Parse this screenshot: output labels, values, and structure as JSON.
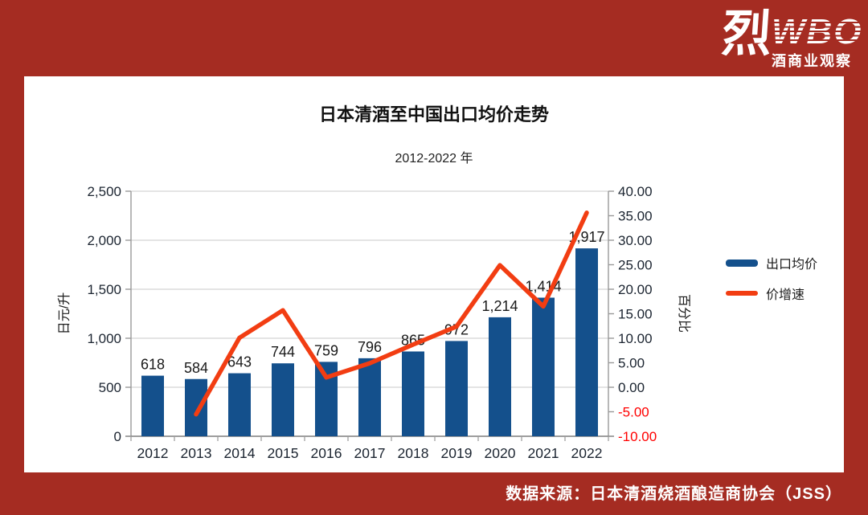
{
  "page": {
    "background_color": "#A52C22"
  },
  "logo": {
    "char": "烈",
    "brand": "WBO",
    "tagline": "酒商业观察"
  },
  "source_note": "数据来源：日本清酒烧酒酿造商协会（JSS）",
  "chart_data": {
    "type": "combo-bar-line",
    "title": "日本清酒至中国出口均价走势",
    "subtitle": "2012-2022 年",
    "categories": [
      "2012",
      "2013",
      "2014",
      "2015",
      "2016",
      "2017",
      "2018",
      "2019",
      "2020",
      "2021",
      "2022"
    ],
    "series": [
      {
        "name": "出口均价",
        "type": "bar",
        "axis": "left",
        "color": "#14508C",
        "values": [
          618,
          584,
          643,
          744,
          759,
          796,
          865,
          972,
          1214,
          1414,
          1917
        ],
        "value_labels": [
          "618",
          "584",
          "643",
          "744",
          "759",
          "796",
          "865",
          "972",
          "1,214",
          "1,414",
          "1,917"
        ]
      },
      {
        "name": "价增速",
        "type": "line",
        "axis": "right",
        "color": "#F23D12",
        "values": [
          null,
          -5.5,
          10.1,
          15.7,
          2.0,
          4.9,
          8.7,
          12.4,
          24.9,
          16.5,
          35.6
        ]
      }
    ],
    "left_axis": {
      "title": "日元/升",
      "min": 0,
      "max": 2500,
      "step": 500,
      "tick_labels": [
        "2,500",
        "2,000",
        "1,500",
        "1,000",
        "500",
        "0"
      ]
    },
    "right_axis": {
      "title": "百分比",
      "min": -10,
      "max": 40,
      "step": 5,
      "tick_labels": [
        "40.00",
        "35.00",
        "30.00",
        "25.00",
        "20.00",
        "15.00",
        "10.00",
        "5.00",
        "0.00",
        "-5.00",
        "-10.00"
      ],
      "negative_color": "#FF0000"
    },
    "grid": true,
    "legend_position": "right",
    "text_color": "#1B2430",
    "grid_color": "#C9C9C9",
    "axis_color": "#9A9A9A"
  }
}
